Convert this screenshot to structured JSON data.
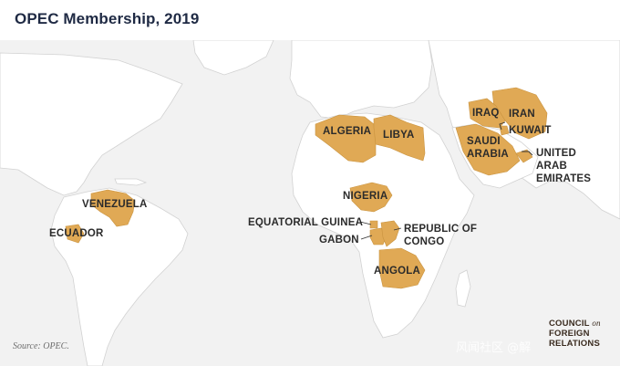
{
  "title": "OPEC Membership, 2019",
  "source": "Source: OPEC.",
  "logo": {
    "line1": "COUNCIL",
    "on": "on",
    "line2": "FOREIGN",
    "line3": "RELATIONS"
  },
  "watermark": "风闻社区 @解",
  "colors": {
    "member": "#e0a955",
    "land": "#ffffff",
    "ocean": "#f2f2f2",
    "border": "#cfcfcf"
  },
  "labels": {
    "venezuela": "VENEZUELA",
    "ecuador": "ECUADOR",
    "algeria": "ALGERIA",
    "libya": "LIBYA",
    "nigeria": "NIGERIA",
    "equatorial_guinea": "EQUATORIAL GUINEA",
    "gabon": "GABON",
    "republic_of_congo_1": "REPUBLIC OF",
    "republic_of_congo_2": "CONGO",
    "angola": "ANGOLA",
    "iraq": "IRAQ",
    "iran": "IRAN",
    "kuwait": "KUWAIT",
    "saudi_arabia_1": "SAUDI",
    "saudi_arabia_2": "ARABIA",
    "uae_1": "UNITED",
    "uae_2": "ARAB",
    "uae_3": "EMIRATES"
  }
}
